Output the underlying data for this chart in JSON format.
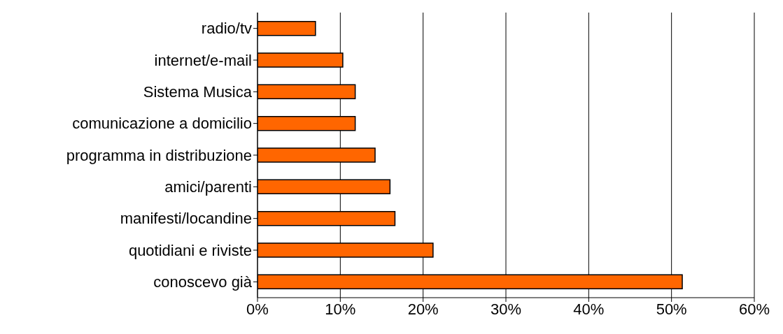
{
  "chart_data": {
    "type": "bar",
    "orientation": "horizontal",
    "categories": [
      "radio/tv",
      "internet/e-mail",
      "Sistema Musica",
      "comunicazione a domicilio",
      "programma in distribuzione",
      "amici/parenti",
      "manifesti/locandine",
      "quotidiani e riviste",
      "conoscevo già"
    ],
    "values": [
      7,
      10.3,
      11.8,
      11.8,
      14.2,
      16,
      16.6,
      21.2,
      51.3
    ],
    "color": "#ff6600",
    "xlim": [
      0,
      60
    ],
    "xticks": [
      {
        "value": 0,
        "label": "0%"
      },
      {
        "value": 10,
        "label": "10%"
      },
      {
        "value": 20,
        "label": "20%"
      },
      {
        "value": 30,
        "label": "30%"
      },
      {
        "value": 40,
        "label": "40%"
      },
      {
        "value": 50,
        "label": "50%"
      },
      {
        "value": 60,
        "label": "60%"
      }
    ],
    "grid": "x",
    "legend": false
  }
}
